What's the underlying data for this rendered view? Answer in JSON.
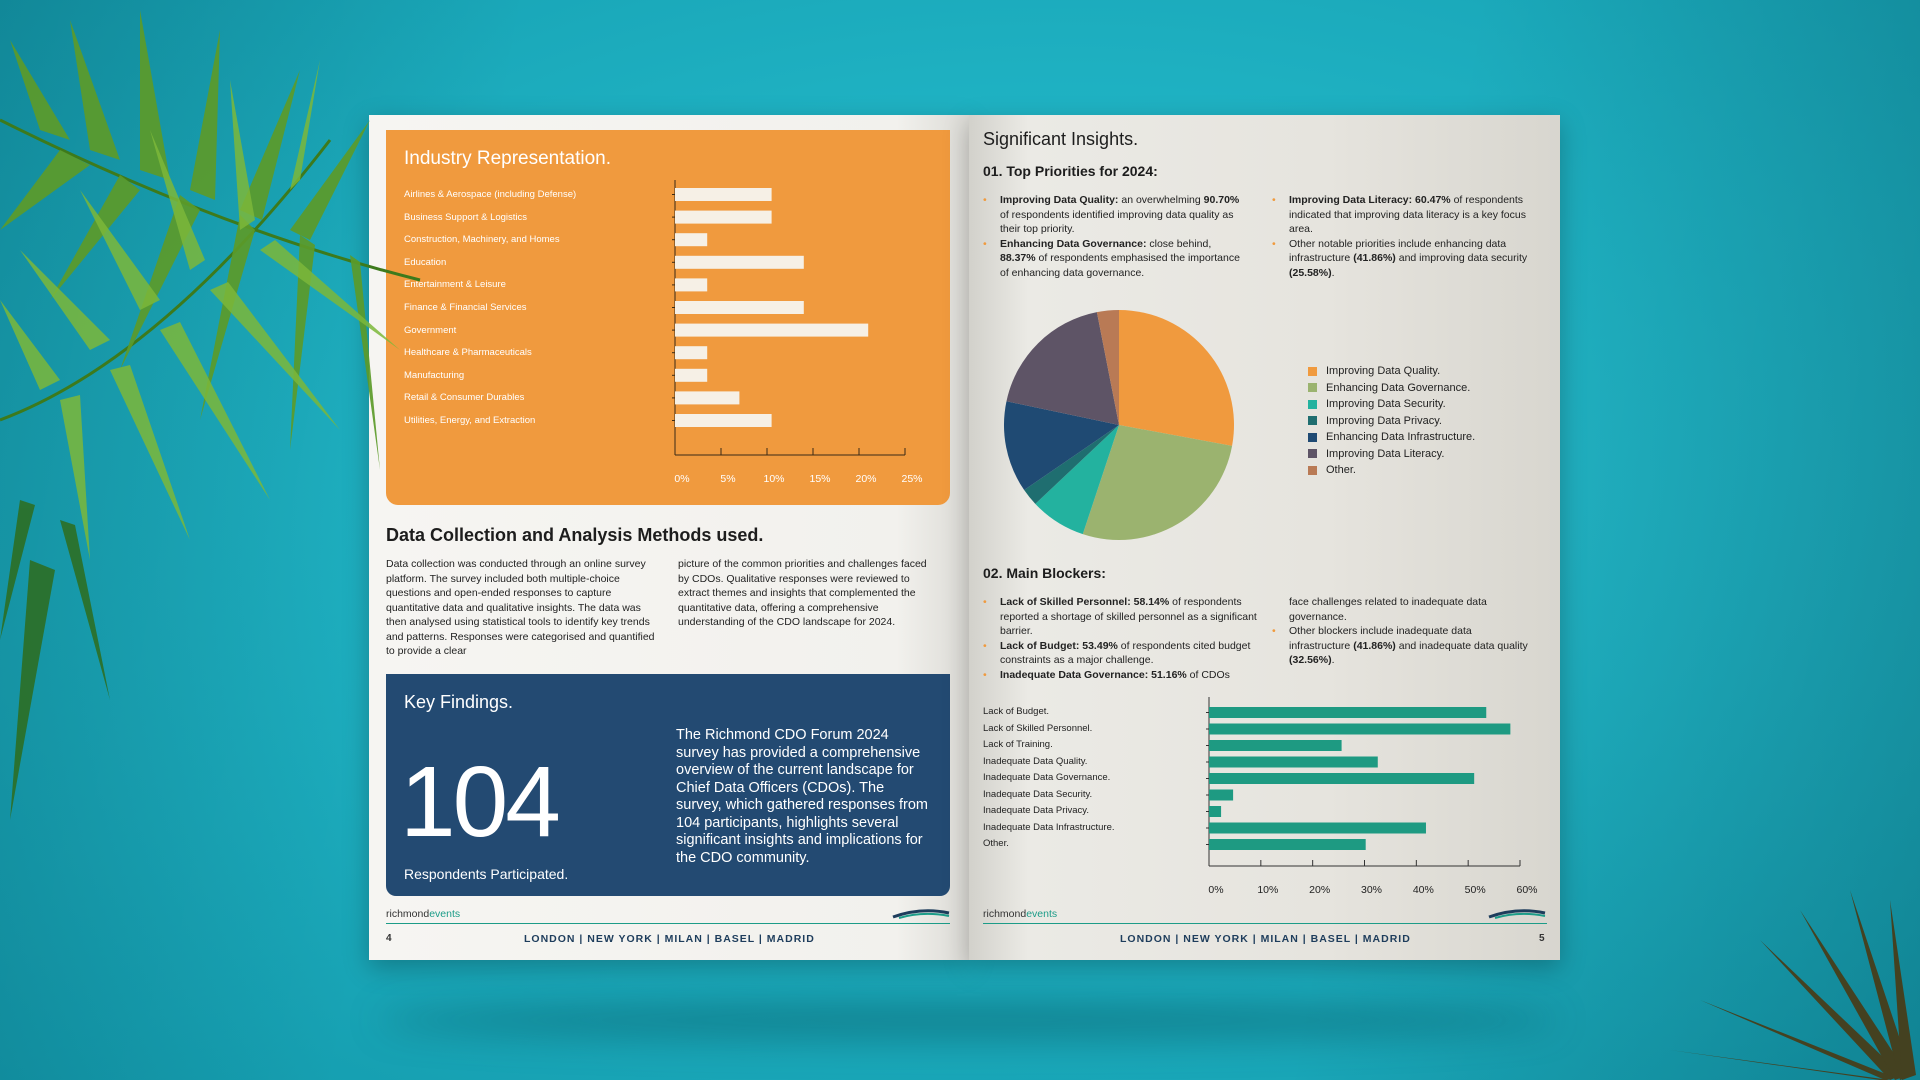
{
  "left_page": {
    "industry": {
      "title": "Industry Representation.",
      "chart_data": {
        "type": "bar",
        "orientation": "horizontal",
        "categories": [
          "Airlines & Aerospace (including Defense)",
          "Business Support & Logistics",
          "Construction, Machinery, and Homes",
          "Education",
          "Entertainment & Leisure",
          "Finance & Financial Services",
          "Government",
          "Healthcare & Pharmaceuticals",
          "Manufacturing",
          "Retail & Consumer Durables",
          "Utilities, Energy, and Extraction"
        ],
        "values": [
          10.5,
          10.5,
          3.5,
          14,
          3.5,
          14,
          21,
          3.5,
          3.5,
          7,
          10.5
        ],
        "xlim": [
          0,
          25
        ],
        "ticks": [
          "0%",
          "5%",
          "10%",
          "15%",
          "20%",
          "25%"
        ],
        "bar_color": "#f6f0e6"
      }
    },
    "methods": {
      "heading": "Data Collection and Analysis Methods used.",
      "col1": "Data collection was conducted through an online survey platform. The survey included both multiple-choice questions and open-ended responses to capture quantitative data and qualitative insights. The data was then analysed using statistical tools to identify key trends and patterns. Responses were categorised and quantified to provide a clear",
      "col2": "picture of the common priorities and challenges faced by CDOs. Qualitative responses were reviewed to extract themes and insights that complemented the quantitative data, offering a comprehensive understanding of the CDO landscape for 2024."
    },
    "findings": {
      "title": "Key Findings.",
      "number": "104",
      "number_caption": "Respondents Participated.",
      "text": "The Richmond CDO Forum 2024 survey has provided a comprehensive overview of the current landscape for Chief Data Officers (CDOs). The survey, which gathered responses from 104 participants, highlights several significant insights and implications for the CDO community."
    },
    "footer": {
      "logo_a": "richmond",
      "logo_b": "events",
      "cities": "LONDON | NEW YORK | MILAN | BASEL | MADRID",
      "page": "4"
    }
  },
  "right_page": {
    "title": "Significant Insights.",
    "priorities": {
      "heading": "01. Top Priorities for 2024:",
      "col1": [
        {
          "bold": "Improving Data Quality:",
          "text": " an overwhelming ",
          "bold2": "90.70%",
          "text2": " of respondents identified improving data quality as their top priority."
        },
        {
          "bold": "Enhancing Data Governance:",
          "text": " close behind, ",
          "bold2": "88.37%",
          "text2": " of respondents emphasised the importance of enhancing data governance."
        }
      ],
      "col2": [
        {
          "bold": "Improving Data Literacy: 60.47%",
          "text": " of respondents indicated that improving data literacy is a key focus area.",
          "bold2": "",
          "text2": ""
        },
        {
          "bold": "",
          "text": "Other notable priorities include enhancing data infrastructure ",
          "bold2": "(41.86%)",
          "text2": " and improving data security ",
          "bold3": "(25.58%)",
          "text3": "."
        }
      ],
      "chart_data": {
        "type": "pie",
        "labels": [
          "Improving Data Quality.",
          "Enhancing Data Governance.",
          "Improving Data Security.",
          "Improving Data Privacy.",
          "Enhancing Data Infrastructure.",
          "Improving Data Literacy.",
          "Other."
        ],
        "values": [
          90.7,
          88.37,
          25.58,
          8,
          41.86,
          60.47,
          10
        ],
        "colors": [
          "#f09a3e",
          "#9bb36f",
          "#23b29f",
          "#1f6e70",
          "#1f4a73",
          "#5e5466",
          "#b97a55"
        ]
      }
    },
    "blockers": {
      "heading": "02. Main Blockers:",
      "col1": [
        {
          "bold": "Lack of Skilled Personnel: 58.14%",
          "text": " of respondents reported a shortage of skilled personnel as a significant barrier."
        },
        {
          "bold": "Lack of Budget: 53.49%",
          "text": " of respondents cited budget constraints as a major challenge."
        },
        {
          "bold": "Inadequate Data Governance: 51.16%",
          "text": " of CDOs"
        }
      ],
      "col2": [
        {
          "bold": "",
          "text": "face challenges related to inadequate data governance.",
          "bullet": false
        },
        {
          "bold": "",
          "text": "Other blockers include inadequate data infrastructure ",
          "bold2": "(41.86%)",
          "text2": " and inadequate data quality ",
          "bold3": "(32.56%)",
          "text3": ".",
          "bullet": true
        }
      ],
      "chart_data": {
        "type": "bar",
        "orientation": "horizontal",
        "categories": [
          "Lack of Budget.",
          "Lack of Skilled Personnel.",
          "Lack of Training.",
          "Inadequate Data Quality.",
          "Inadequate Data Governance.",
          "Inadequate Data Security.",
          "Inadequate Data Privacy.",
          "Inadequate Data Infrastructure.",
          "Other."
        ],
        "values": [
          53.49,
          58.14,
          25.58,
          32.56,
          51.16,
          4.65,
          2.33,
          41.86,
          30.23
        ],
        "xlim": [
          0,
          60
        ],
        "ticks": [
          "0%",
          "10%",
          "20%",
          "30%",
          "40%",
          "50%",
          "60%"
        ],
        "bar_color": "#1e9a82"
      }
    },
    "footer": {
      "logo_a": "richmond",
      "logo_b": "events",
      "cities": "LONDON | NEW YORK | MILAN | BASEL | MADRID",
      "page": "5"
    }
  }
}
